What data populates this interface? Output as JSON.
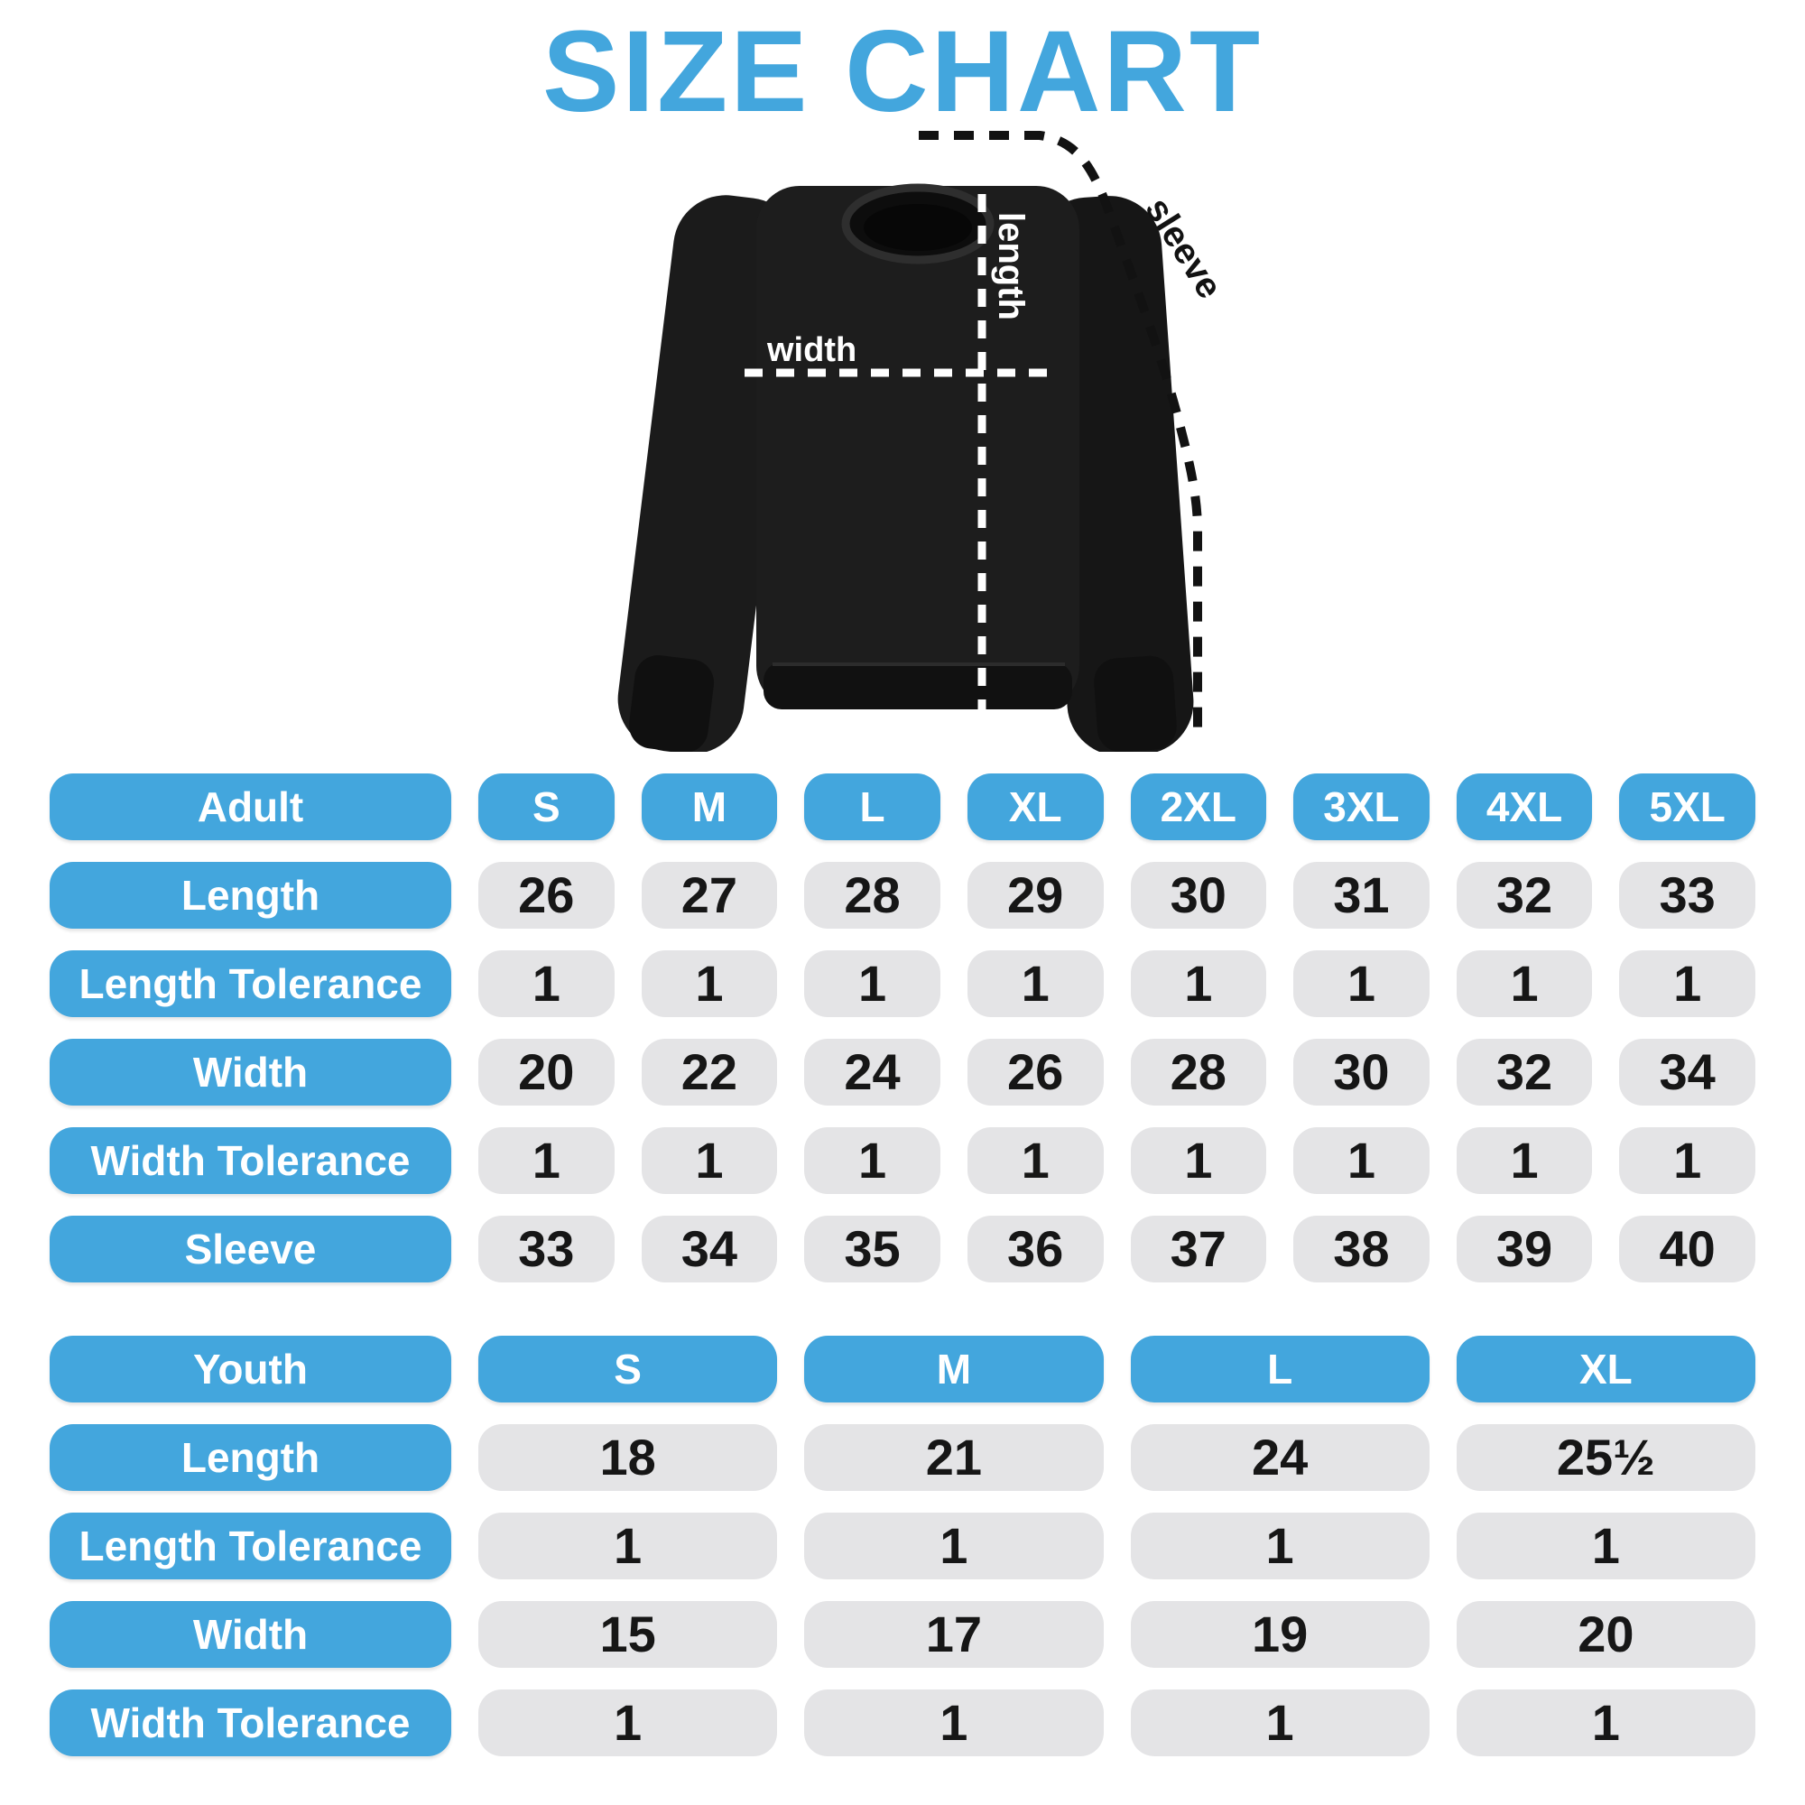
{
  "title": "SIZE CHART",
  "colors": {
    "accent_blue": "#43A6DD",
    "cell_gray": "#E4E4E6",
    "value_text": "#161616",
    "garment_black": "#1a1a1a"
  },
  "figure": {
    "labels": {
      "length": "length",
      "width": "width",
      "sleeve": "sleeve"
    }
  },
  "adult_table": {
    "group_label": "Adult",
    "sizes": [
      "S",
      "M",
      "L",
      "XL",
      "2XL",
      "3XL",
      "4XL",
      "5XL"
    ],
    "rows": [
      {
        "label": "Length",
        "values": [
          "26",
          "27",
          "28",
          "29",
          "30",
          "31",
          "32",
          "33"
        ]
      },
      {
        "label": "Length Tolerance",
        "values": [
          "1",
          "1",
          "1",
          "1",
          "1",
          "1",
          "1",
          "1"
        ]
      },
      {
        "label": "Width",
        "values": [
          "20",
          "22",
          "24",
          "26",
          "28",
          "30",
          "32",
          "34"
        ]
      },
      {
        "label": "Width Tolerance",
        "values": [
          "1",
          "1",
          "1",
          "1",
          "1",
          "1",
          "1",
          "1"
        ]
      },
      {
        "label": "Sleeve",
        "values": [
          "33",
          "34",
          "35",
          "36",
          "37",
          "38",
          "39",
          "40"
        ]
      }
    ]
  },
  "youth_table": {
    "group_label": "Youth",
    "sizes": [
      "S",
      "M",
      "L",
      "XL"
    ],
    "rows": [
      {
        "label": "Length",
        "values": [
          "18",
          "21",
          "24",
          "25½"
        ]
      },
      {
        "label": "Length Tolerance",
        "values": [
          "1",
          "1",
          "1",
          "1"
        ]
      },
      {
        "label": "Width",
        "values": [
          "15",
          "17",
          "19",
          "20"
        ]
      },
      {
        "label": "Width Tolerance",
        "values": [
          "1",
          "1",
          "1",
          "1"
        ]
      }
    ]
  }
}
